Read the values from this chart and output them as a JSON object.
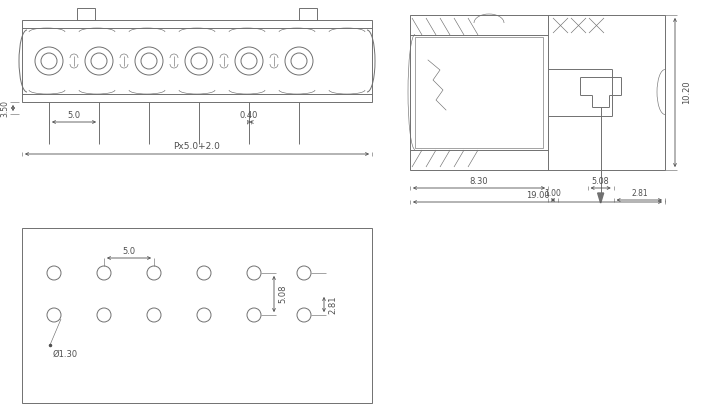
{
  "bg_color": "#ffffff",
  "lc": "#707070",
  "dc": "#505050",
  "lw": 0.7,
  "tw": 0.45,
  "fig_w": 7.01,
  "fig_h": 4.11,
  "dpi": 100,
  "labels": {
    "dim_35": "3.50",
    "dim_50": "5.0",
    "dim_040": "0.40",
    "dim_px": "Px5.0+2.0",
    "dim_830": "8.30",
    "dim_100": "1.00",
    "dim_508": "5.08",
    "dim_281": "2.81",
    "dim_1020": "10.20",
    "dim_1900": "19.00",
    "dim_d130": "Ø1.30",
    "dim_50b": "5.0",
    "dim_508b": "5.08",
    "dim_281b": "2.81"
  }
}
